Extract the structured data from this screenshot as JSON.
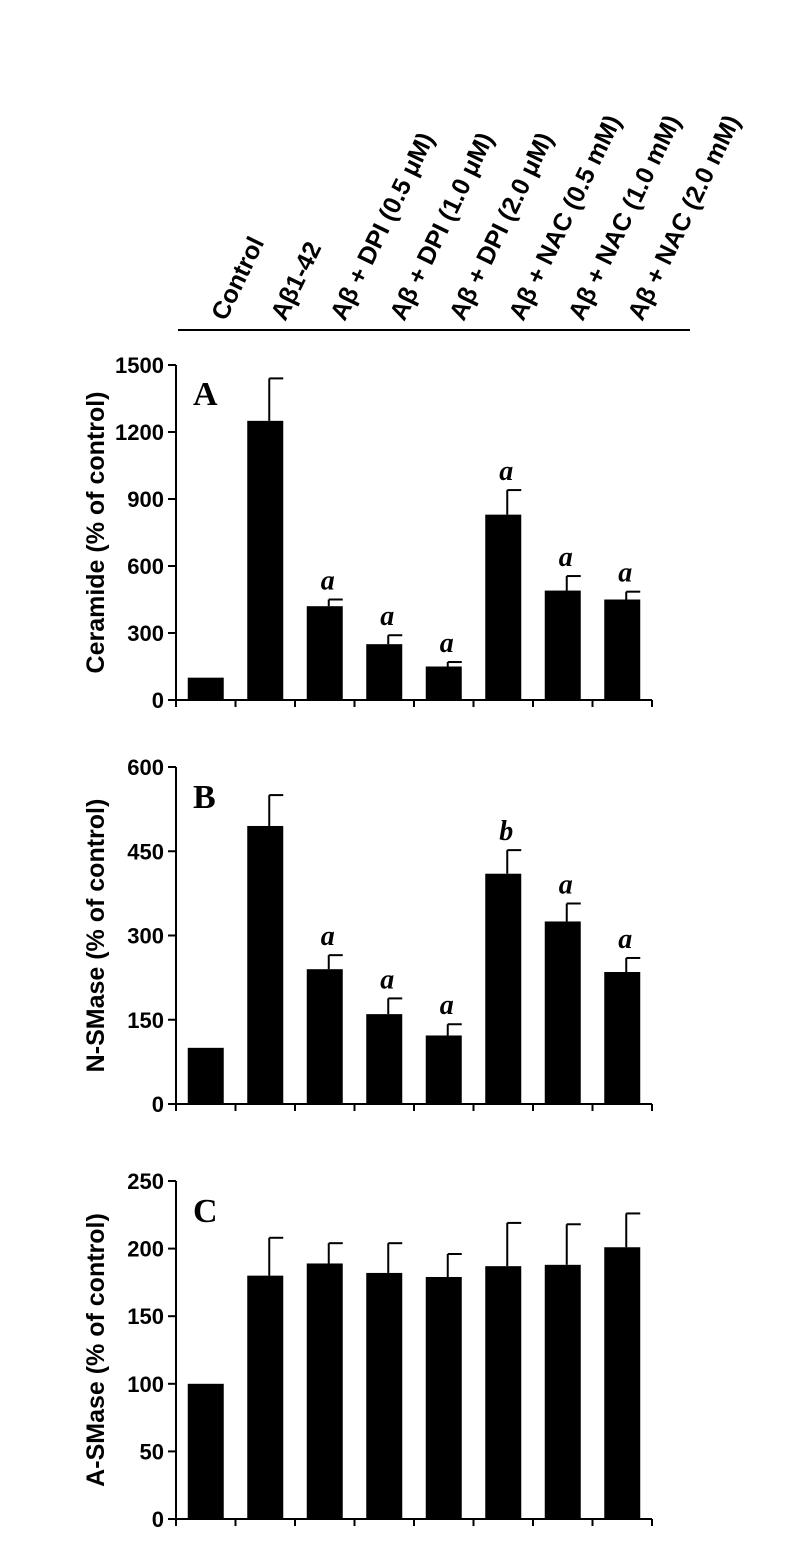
{
  "chart_data": [
    {
      "type": "bar",
      "panel": "A",
      "ylabel": "Ceramide (% of control)",
      "ylim": [
        0,
        1500
      ],
      "yticks": [
        "0",
        "300",
        "600",
        "900",
        "1200",
        "1500"
      ],
      "categories": [
        "Control",
        "Aβ1-42",
        "Aβ + DPI (0.5 μM)",
        "Aβ + DPI (1.0 μM)",
        "Aβ + DPI (2.0 μM)",
        "Aβ + NAC (0.5 mM)",
        "Aβ + NAC (1.0 mM)",
        "Aβ + NAC (2.0 mM)"
      ],
      "values": [
        100,
        1250,
        420,
        250,
        150,
        830,
        490,
        450
      ],
      "errors": [
        0,
        190,
        30,
        40,
        20,
        110,
        65,
        35
      ],
      "significance": [
        "",
        "",
        "a",
        "a",
        "a",
        "a",
        "a",
        "a"
      ]
    },
    {
      "type": "bar",
      "panel": "B",
      "ylabel": "N-SMase (% of control)",
      "ylim": [
        0,
        600
      ],
      "yticks": [
        "0",
        "150",
        "300",
        "450",
        "600"
      ],
      "categories": [
        "Control",
        "Aβ1-42",
        "Aβ + DPI (0.5 μM)",
        "Aβ + DPI (1.0 μM)",
        "Aβ + DPI (2.0 μM)",
        "Aβ + NAC (0.5 mM)",
        "Aβ + NAC (1.0 mM)",
        "Aβ + NAC (2.0 mM)"
      ],
      "values": [
        100,
        495,
        240,
        160,
        122,
        410,
        325,
        235
      ],
      "errors": [
        0,
        55,
        25,
        28,
        20,
        42,
        32,
        25
      ],
      "significance": [
        "",
        "",
        "a",
        "a",
        "a",
        "b",
        "a",
        "a"
      ]
    },
    {
      "type": "bar",
      "panel": "C",
      "ylabel": "A-SMase (% of control)",
      "ylim": [
        0,
        250
      ],
      "yticks": [
        "0",
        "50",
        "100",
        "150",
        "200",
        "250"
      ],
      "categories": [
        "Control",
        "Aβ1-42",
        "Aβ + DPI (0.5 μM)",
        "Aβ + DPI (1.0 μM)",
        "Aβ + DPI (2.0 μM)",
        "Aβ + NAC (0.5 mM)",
        "Aβ + NAC (1.0 mM)",
        "Aβ + NAC (2.0 mM)"
      ],
      "values": [
        100,
        180,
        189,
        182,
        179,
        187,
        188,
        201
      ],
      "errors": [
        0,
        28,
        15,
        22,
        17,
        32,
        30,
        25
      ],
      "significance": [
        "",
        "",
        "",
        "",
        "",
        "",
        "",
        ""
      ]
    }
  ]
}
